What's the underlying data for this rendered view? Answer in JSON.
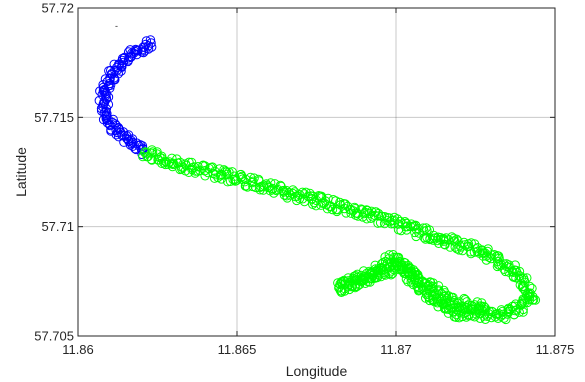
{
  "chart_data": {
    "type": "scatter",
    "xlabel": "Longitude",
    "ylabel": "Latitude",
    "xlim": [
      11.86,
      11.875
    ],
    "ylim": [
      57.705,
      57.72
    ],
    "x_ticks": [
      11.86,
      11.865,
      11.87,
      11.875
    ],
    "x_tick_labels": [
      "11.86",
      "11.865",
      "11.87",
      "11.875"
    ],
    "y_ticks": [
      57.705,
      57.71,
      57.715,
      57.72
    ],
    "y_tick_labels": [
      "57.705",
      "57.71",
      "57.715",
      "57.72"
    ],
    "grid": true,
    "marker": "circle-open",
    "series": [
      {
        "color": "#0000ff",
        "points": [
          [
            11.8623,
            57.7184
          ],
          [
            11.8618,
            57.718
          ],
          [
            11.8613,
            57.7174
          ],
          [
            11.861,
            57.7168
          ],
          [
            11.8608,
            57.7162
          ],
          [
            11.8608,
            57.7156
          ],
          [
            11.8609,
            57.715
          ],
          [
            11.8612,
            57.7144
          ],
          [
            11.8616,
            57.7139
          ],
          [
            11.8621,
            57.7134
          ]
        ]
      },
      {
        "color": "#00ff00",
        "points": [
          [
            11.8621,
            57.7134
          ],
          [
            11.863,
            57.7129
          ],
          [
            11.8645,
            57.7124
          ],
          [
            11.866,
            57.7118
          ],
          [
            11.8675,
            57.7112
          ],
          [
            11.869,
            57.7106
          ],
          [
            11.8703,
            57.71
          ],
          [
            11.8715,
            57.7094
          ],
          [
            11.8728,
            57.7088
          ],
          [
            11.8738,
            57.7079
          ],
          [
            11.8743,
            57.7068
          ],
          [
            11.8738,
            57.7062
          ],
          [
            11.8735,
            57.706
          ],
          [
            11.8728,
            57.706
          ],
          [
            11.8718,
            57.7061
          ],
          [
            11.8713,
            57.7066
          ],
          [
            11.8705,
            57.7076
          ],
          [
            11.87,
            57.7086
          ],
          [
            11.8692,
            57.7079
          ],
          [
            11.8682,
            57.7072
          ],
          [
            11.8702,
            57.7082
          ],
          [
            11.871,
            57.7073
          ],
          [
            11.8717,
            57.7066
          ],
          [
            11.8728,
            57.7063
          ]
        ]
      }
    ],
    "annotations": [
      "-"
    ]
  }
}
